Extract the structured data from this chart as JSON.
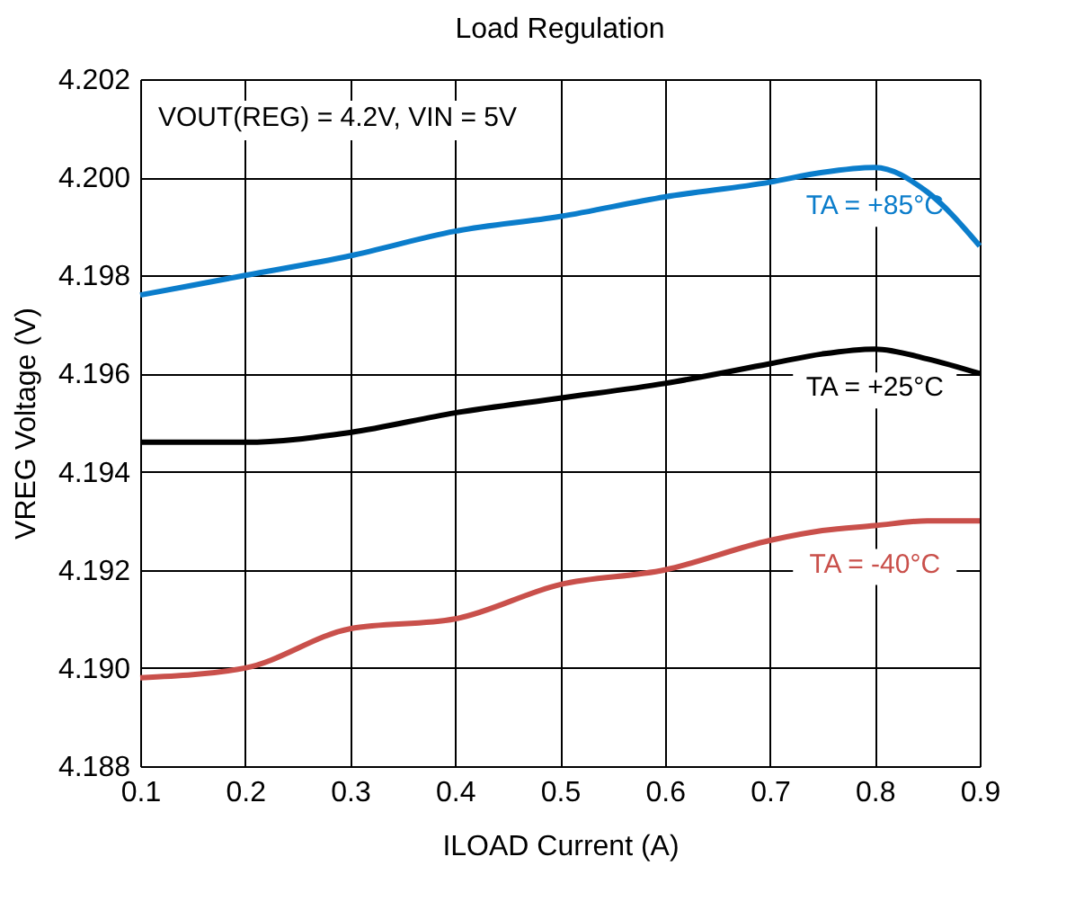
{
  "chart_data": {
    "type": "line",
    "title": "Load Regulation",
    "xlabel": "ILOAD Current (A)",
    "ylabel": "VREG Voltage (V)",
    "x": [
      0.1,
      0.2,
      0.3,
      0.4,
      0.5,
      0.6,
      0.7,
      0.75,
      0.8,
      0.85,
      0.9
    ],
    "series": [
      {
        "name": "TA = +85°C",
        "color": "#0b7dcb",
        "values": [
          4.1976,
          4.198,
          4.1984,
          4.1989,
          4.1992,
          4.1996,
          4.1999,
          4.2001,
          4.2002,
          4.1997,
          4.1986
        ]
      },
      {
        "name": "TA = +25°C",
        "color": "#000000",
        "values": [
          4.1946,
          4.1946,
          4.1948,
          4.1952,
          4.1955,
          4.1958,
          4.1962,
          4.1964,
          4.1965,
          4.1963,
          4.196
        ]
      },
      {
        "name": "TA = -40°C",
        "color": "#c9504b",
        "values": [
          4.1898,
          4.19,
          4.1908,
          4.191,
          4.1917,
          4.192,
          4.1926,
          4.1928,
          4.1929,
          4.193,
          4.193
        ]
      }
    ],
    "annotations": [
      "VOUT(REG) = 4.2V, VIN = 5V"
    ],
    "xlim": [
      0.1,
      0.9
    ],
    "xticks": [
      0.1,
      0.2,
      0.3,
      0.4,
      0.5,
      0.6,
      0.7,
      0.8,
      0.9
    ],
    "ylim": [
      4.188,
      4.202
    ],
    "yticks": [
      4.188,
      {
        "value": 4.19,
        "label": "4.190"
      },
      4.192,
      4.194,
      4.196,
      4.198,
      {
        "value": 4.2,
        "label": "4.200"
      },
      4.202
    ],
    "grid": true,
    "legend": false,
    "marker": "none",
    "line_style": "solid"
  }
}
